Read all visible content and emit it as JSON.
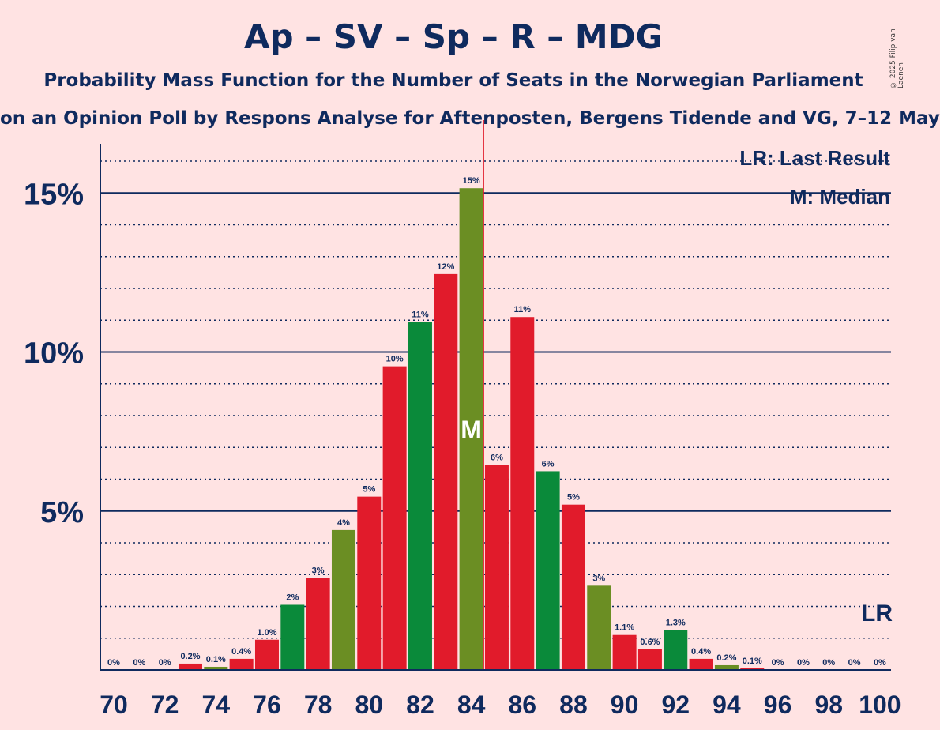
{
  "title": "Ap – SV – Sp – R – MDG",
  "subtitle": "Probability Mass Function for the Number of Seats in the Norwegian Parliament",
  "subtitle2": "on an Opinion Poll by Respons Analyse for Aftenposten, Bergens Tidende and VG, 7–12 May",
  "copyright": "© 2025 Filip van Laenen",
  "legend": {
    "last_result": "LR: Last Result",
    "median": "M: Median"
  },
  "colors": {
    "red": "#E11B2B",
    "green": "#0A8A3A",
    "olive": "#6B8E23",
    "text": "#0F2A5E",
    "median_line": "#E11B2B"
  },
  "chart_data": {
    "type": "bar",
    "x": [
      70,
      71,
      72,
      73,
      74,
      75,
      76,
      77,
      78,
      79,
      80,
      81,
      82,
      83,
      84,
      85,
      86,
      87,
      88,
      89,
      90,
      91,
      92,
      93,
      94,
      95,
      96,
      97,
      98,
      99,
      100
    ],
    "values": [
      0,
      0,
      0,
      0.2,
      0.1,
      0.4,
      1.0,
      2,
      3,
      4,
      5,
      10,
      11,
      12,
      15,
      6,
      11,
      6,
      5,
      3,
      1.1,
      0.6,
      1.3,
      0.4,
      0.2,
      0.1,
      0,
      0,
      0,
      0,
      0
    ],
    "heights": [
      0,
      0,
      0,
      0.2,
      0.1,
      0.35,
      0.95,
      2.05,
      2.9,
      4.4,
      5.45,
      9.55,
      10.95,
      12.45,
      15.15,
      6.45,
      11.1,
      6.25,
      5.2,
      2.65,
      1.1,
      0.65,
      1.25,
      0.35,
      0.15,
      0.05,
      0,
      0,
      0,
      0,
      0
    ],
    "labels": [
      "0%",
      "0%",
      "0%",
      "0.2%",
      "0.1%",
      "0.4%",
      "1.0%",
      "2%",
      "3%",
      "4%",
      "5%",
      "10%",
      "11%",
      "12%",
      "15%",
      "6%",
      "11%",
      "6%",
      "5%",
      "3%",
      "1.1%",
      "0.6%",
      "1.3%",
      "0.4%",
      "0.2%",
      "0.1%",
      "0%",
      "0%",
      "0%",
      "0%",
      "0%"
    ],
    "bar_colors": [
      "red",
      "red",
      "red",
      "red",
      "olive",
      "red",
      "red",
      "green",
      "red",
      "olive",
      "red",
      "red",
      "green",
      "red",
      "olive",
      "red",
      "red",
      "green",
      "red",
      "olive",
      "red",
      "red",
      "green",
      "red",
      "olive",
      "red",
      "red",
      "green",
      "red",
      "olive",
      "red"
    ],
    "x_tick_labels": [
      "70",
      "72",
      "74",
      "76",
      "78",
      "80",
      "82",
      "84",
      "86",
      "88",
      "90",
      "92",
      "94",
      "96",
      "98",
      "100"
    ],
    "y_tick_labels": [
      "5%",
      "10%",
      "15%"
    ],
    "y_ticks": [
      5,
      10,
      15
    ],
    "ylim": [
      0,
      16.5
    ],
    "median": 84,
    "median_label": "M",
    "last_result": 100,
    "last_result_label": "LR"
  }
}
